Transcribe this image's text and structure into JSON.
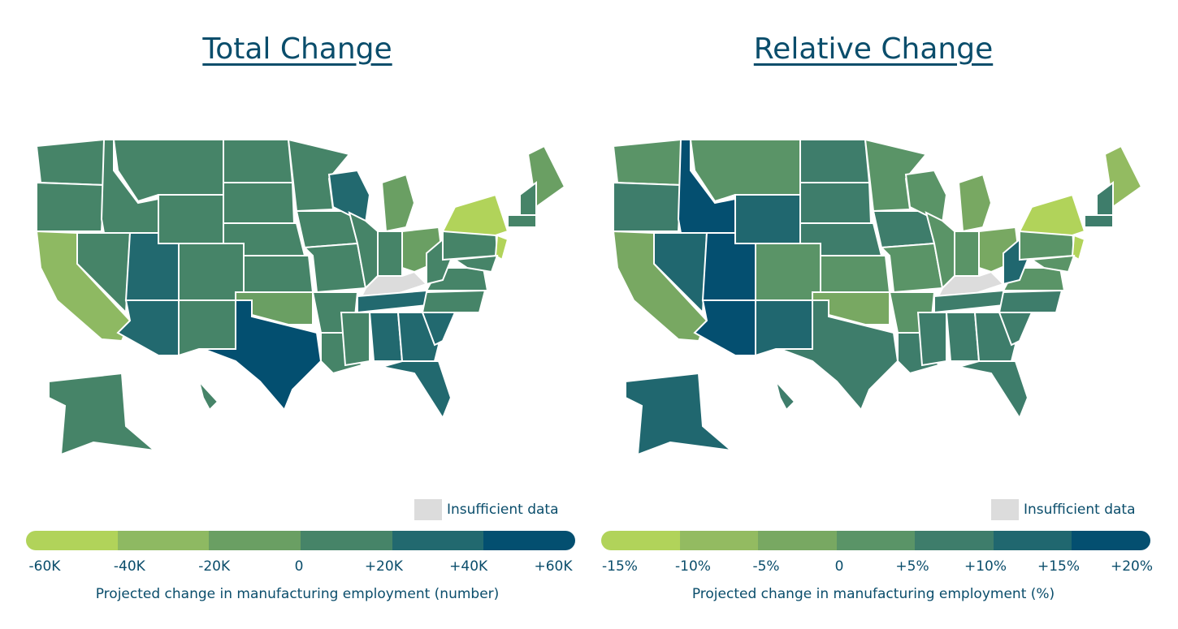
{
  "left": {
    "title": "Total Change",
    "insufficient": "Insufficient data",
    "caption": "Projected change in manufacturing employment (number)",
    "ticks": [
      "-60K",
      "-40K",
      "-20K",
      "0",
      "+20K",
      "+40K",
      "+60K"
    ],
    "colors": [
      "#b1d35a",
      "#8eb962",
      "#6a9f63",
      "#468468",
      "#22696f",
      "#034f70"
    ],
    "states": {
      "WA": 3,
      "OR": 3,
      "CA": 1,
      "NV": 3,
      "ID": 3,
      "MT": 3,
      "WY": 3,
      "UT": 4,
      "AZ": 4,
      "CO": 3,
      "NM": 3,
      "TX": 5,
      "ND": 3,
      "SD": 3,
      "NE": 3,
      "KS": 3,
      "OK": 2,
      "MN": 3,
      "IA": 3,
      "MO": 3,
      "AR": 3,
      "LA": 3,
      "WI": 4,
      "IL": 3,
      "MI": 2,
      "IN": 3,
      "OH": 2,
      "KY": null,
      "TN": 4,
      "MS": 3,
      "AL": 4,
      "GA": 4,
      "FL": 4,
      "SC": 4,
      "NC": 3,
      "VA": 3,
      "WV": 3,
      "PA": 3,
      "NY": 0,
      "ME": 2,
      "VTNH": 3,
      "MA": 3,
      "NJ": 0,
      "MDDE": 3,
      "AK": 3,
      "HI": 3
    }
  },
  "right": {
    "title": "Relative Change",
    "insufficient": "Insufficient data",
    "caption": "Projected change in manufacturing employment (%)",
    "ticks": [
      "-15%",
      "-10%",
      "-5%",
      "0",
      "+5%",
      "+10%",
      "+15%",
      "+20%"
    ],
    "colors": [
      "#b1d35a",
      "#93bb61",
      "#78a862",
      "#5a9467",
      "#3e7d6b",
      "#20676f",
      "#044f70"
    ],
    "states": {
      "WA": 3,
      "OR": 4,
      "CA": 2,
      "NV": 5,
      "ID": 6,
      "MT": 3,
      "WY": 5,
      "UT": 6,
      "AZ": 6,
      "CO": 3,
      "NM": 5,
      "TX": 4,
      "ND": 4,
      "SD": 4,
      "NE": 4,
      "KS": 3,
      "OK": 2,
      "MN": 3,
      "IA": 4,
      "MO": 3,
      "AR": 3,
      "LA": 4,
      "WI": 3,
      "IL": 3,
      "MI": 2,
      "IN": 3,
      "OH": 2,
      "KY": null,
      "TN": 4,
      "MS": 4,
      "AL": 4,
      "GA": 4,
      "FL": 4,
      "SC": 4,
      "NC": 4,
      "VA": 3,
      "WV": 5,
      "PA": 3,
      "NY": 0,
      "ME": 1,
      "VTNH": 4,
      "MA": 4,
      "NJ": 0,
      "MDDE": 3,
      "AK": 5,
      "HI": 4
    }
  },
  "no_data_color": "#dcdcdc"
}
